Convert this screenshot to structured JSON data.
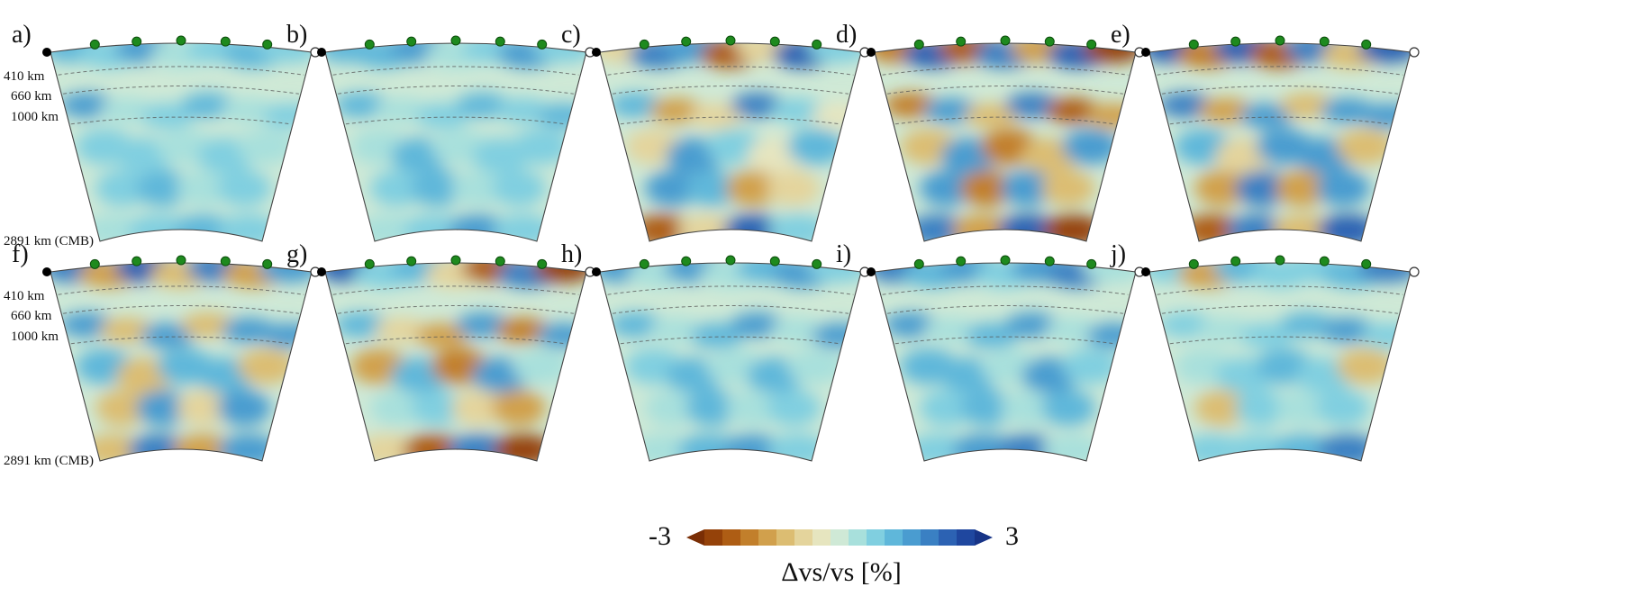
{
  "panels": [
    {
      "label": "a)",
      "pattern": [
        0.35,
        0.25,
        0.55,
        0.1,
        0.3,
        0.4,
        0.2
      ]
    },
    {
      "label": "b)",
      "pattern": [
        0.4,
        0.35,
        0.45,
        0.15,
        0.25,
        0.5,
        0.25
      ]
    },
    {
      "label": "c)",
      "pattern": [
        -0.2,
        0.6,
        0.5,
        -0.7,
        -0.3,
        0.8,
        0.3
      ]
    },
    {
      "label": "d)",
      "pattern": [
        -0.6,
        0.7,
        -0.8,
        0.6,
        -0.5,
        0.75,
        -0.9
      ]
    },
    {
      "label": "e)",
      "pattern": [
        0.7,
        -0.6,
        0.8,
        -0.7,
        0.6,
        -0.4,
        0.7
      ]
    },
    {
      "label": "f)",
      "pattern": [
        0.6,
        -0.5,
        0.7,
        -0.4,
        0.6,
        -0.5,
        0.55
      ]
    },
    {
      "label": "g)",
      "pattern": [
        0.7,
        0.2,
        0.4,
        -0.3,
        -0.7,
        0.6,
        -0.85
      ]
    },
    {
      "label": "h)",
      "pattern": [
        0.55,
        0.15,
        0.45,
        0.1,
        0.4,
        0.55,
        0.2
      ]
    },
    {
      "label": "i)",
      "pattern": [
        0.65,
        0.35,
        0.55,
        0.2,
        0.45,
        0.6,
        0.15
      ]
    },
    {
      "label": "j)",
      "pattern": [
        0.3,
        -0.45,
        0.35,
        0.2,
        0.25,
        0.4,
        0.6
      ]
    }
  ],
  "depth_labels": [
    "410 km",
    "660 km",
    "1000 km",
    "2891 km (CMB)"
  ],
  "colorbar": {
    "min_label": "-3",
    "max_label": "3",
    "min": -3,
    "max": 3,
    "quantity_label": "Δvs/vs [%]",
    "colors": [
      "#7a2e05",
      "#954209",
      "#ae5d14",
      "#c27f2b",
      "#d1a04c",
      "#dcbd72",
      "#e4d49c",
      "#e6e5bf",
      "#cfe9d6",
      "#a8e0dc",
      "#80cfe0",
      "#5fb7da",
      "#4a9cd0",
      "#3a80c3",
      "#2c62b3",
      "#1f479f",
      "#173487"
    ]
  },
  "markers": {
    "station_color": "#1e8a1e",
    "left_end_color": "#000000",
    "right_end_color": "#ffffff"
  }
}
